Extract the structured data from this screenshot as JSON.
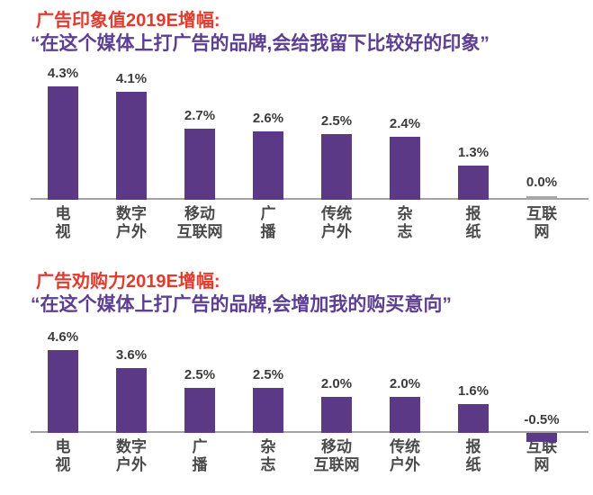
{
  "page": {
    "background": "#ffffff"
  },
  "colors": {
    "bar": "#5c3987",
    "zero_bar": "#a6a6a6",
    "title": "#e13b2e",
    "subtitle": "#5d3f92",
    "axis": "#a3a3a3",
    "value_label": "#3c3c3c",
    "category_label": "#4a4a4a"
  },
  "chart_data": [
    {
      "type": "bar",
      "title": "广告印象值2019E增幅:",
      "subtitle": "“在这个媒体上打广告的品牌,会给我留下比较好的印象”",
      "categories": [
        "电视",
        "数字户外",
        "移动互联网",
        "广播",
        "传统户外",
        "杂志",
        "报纸",
        "互联网"
      ],
      "category_lines": [
        "电\n视",
        "数字\n户外",
        "移动\n互联网",
        "广\n播",
        "传统\n户外",
        "杂\n志",
        "报\n纸",
        "互联\n网"
      ],
      "values": [
        4.3,
        4.1,
        2.7,
        2.6,
        2.5,
        2.4,
        1.3,
        0.0
      ],
      "value_labels": [
        "4.3%",
        "4.1%",
        "2.7%",
        "2.6%",
        "2.5%",
        "2.4%",
        "1.3%",
        "0.0%"
      ],
      "xlabel": "",
      "ylabel": "",
      "ylim": [
        0,
        5
      ],
      "grid": false,
      "legend": "none"
    },
    {
      "type": "bar",
      "title": "广告劝购力2019E增幅:",
      "subtitle": "“在这个媒体上打广告的品牌,会增加我的购买意向”",
      "categories": [
        "电视",
        "数字户外",
        "广播",
        "杂志",
        "移动互联网",
        "传统户外",
        "报纸",
        "互联网"
      ],
      "category_lines": [
        "电\n视",
        "数字\n户外",
        "广\n播",
        "杂\n志",
        "移动\n互联网",
        "传统\n户外",
        "报\n纸",
        "互联\n网"
      ],
      "values": [
        4.6,
        3.6,
        2.5,
        2.5,
        2.0,
        2.0,
        1.6,
        -0.5
      ],
      "value_labels": [
        "4.6%",
        "3.6%",
        "2.5%",
        "2.5%",
        "2.0%",
        "2.0%",
        "1.6%",
        "-0.5%"
      ],
      "xlabel": "",
      "ylabel": "",
      "ylim": [
        -1,
        5
      ],
      "grid": false,
      "legend": "none"
    }
  ]
}
